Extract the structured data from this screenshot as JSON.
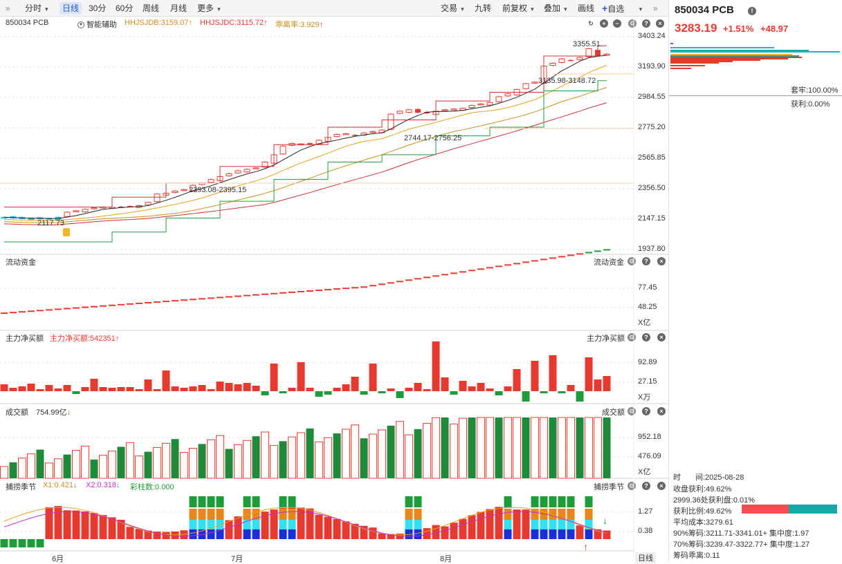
{
  "toolbar": {
    "periods": [
      "分时",
      "日线",
      "30分",
      "60分",
      "周线",
      "月线",
      "更多"
    ],
    "active": "日线",
    "right_buttons": [
      "交易",
      "九转",
      "前复权",
      "叠加",
      "画线",
      "自选"
    ]
  },
  "main_chart": {
    "symbol": "850034 PCB",
    "aux_label": "智能辅助",
    "ind1": "HHJSJDB:3159.07",
    "ind2": "HHJSJDC:3115.72",
    "ind3": "乖离率:3.929",
    "y_ticks": [
      "3403.24",
      "3193.90",
      "2984.55",
      "2775.20",
      "2565.85",
      "2356.50",
      "2147.15",
      "1937.80"
    ],
    "annotations": [
      "3355.51",
      "3135.98-3148.72",
      "2744.17-2756.25",
      "2393.08-2395.15",
      "2117.73"
    ]
  },
  "pane_flow": {
    "title": "流动资金",
    "right_title": "流动资金",
    "y_ticks": [
      "77.45",
      "48.25"
    ],
    "unit": "X亿"
  },
  "pane_net": {
    "title": "主力净买额",
    "value": "主力净买额:542351",
    "right_title": "主力净买额",
    "y_ticks": [
      "92.89",
      "27.15"
    ],
    "unit": "X万"
  },
  "pane_vol": {
    "title": "成交额",
    "value": "754.99亿",
    "right_title": "成交额",
    "y_ticks": [
      "952.18",
      "476.09"
    ],
    "unit": "X亿"
  },
  "pane_season": {
    "title": "捕捞季节",
    "x1": "X1:0.421",
    "x2": "X2:0.318",
    "bars": "彩柱数:0.000",
    "right_title": "捕捞季节",
    "y_ticks": [
      "1.27",
      "0.38"
    ]
  },
  "x_axis": {
    "months": [
      "6月",
      "7月",
      "8月"
    ],
    "label": "日线"
  },
  "right_panel": {
    "code": "850034 PCB",
    "price": "3283.19",
    "pct": "+1.51%",
    "chg": "+48.97",
    "trapped": "套牢:100.00%",
    "profit": "获利:0.00%",
    "date_label": "时",
    "date": "间:2025-08-28",
    "close_profit": "收盘获利:49.62%",
    "profit_at": "2999.36处获利盘:0.01%",
    "profit_ratio": "获利比例:49.62%",
    "avg_cost": "平均成本:3279.61",
    "chip90": "90%筹码:3211.71-3341.01+ 集中度:1.97",
    "chip70": "70%筹码:3239.47-3322.77+ 集中度:1.27",
    "chip_dev": "筹码乖离:0.11"
  }
}
